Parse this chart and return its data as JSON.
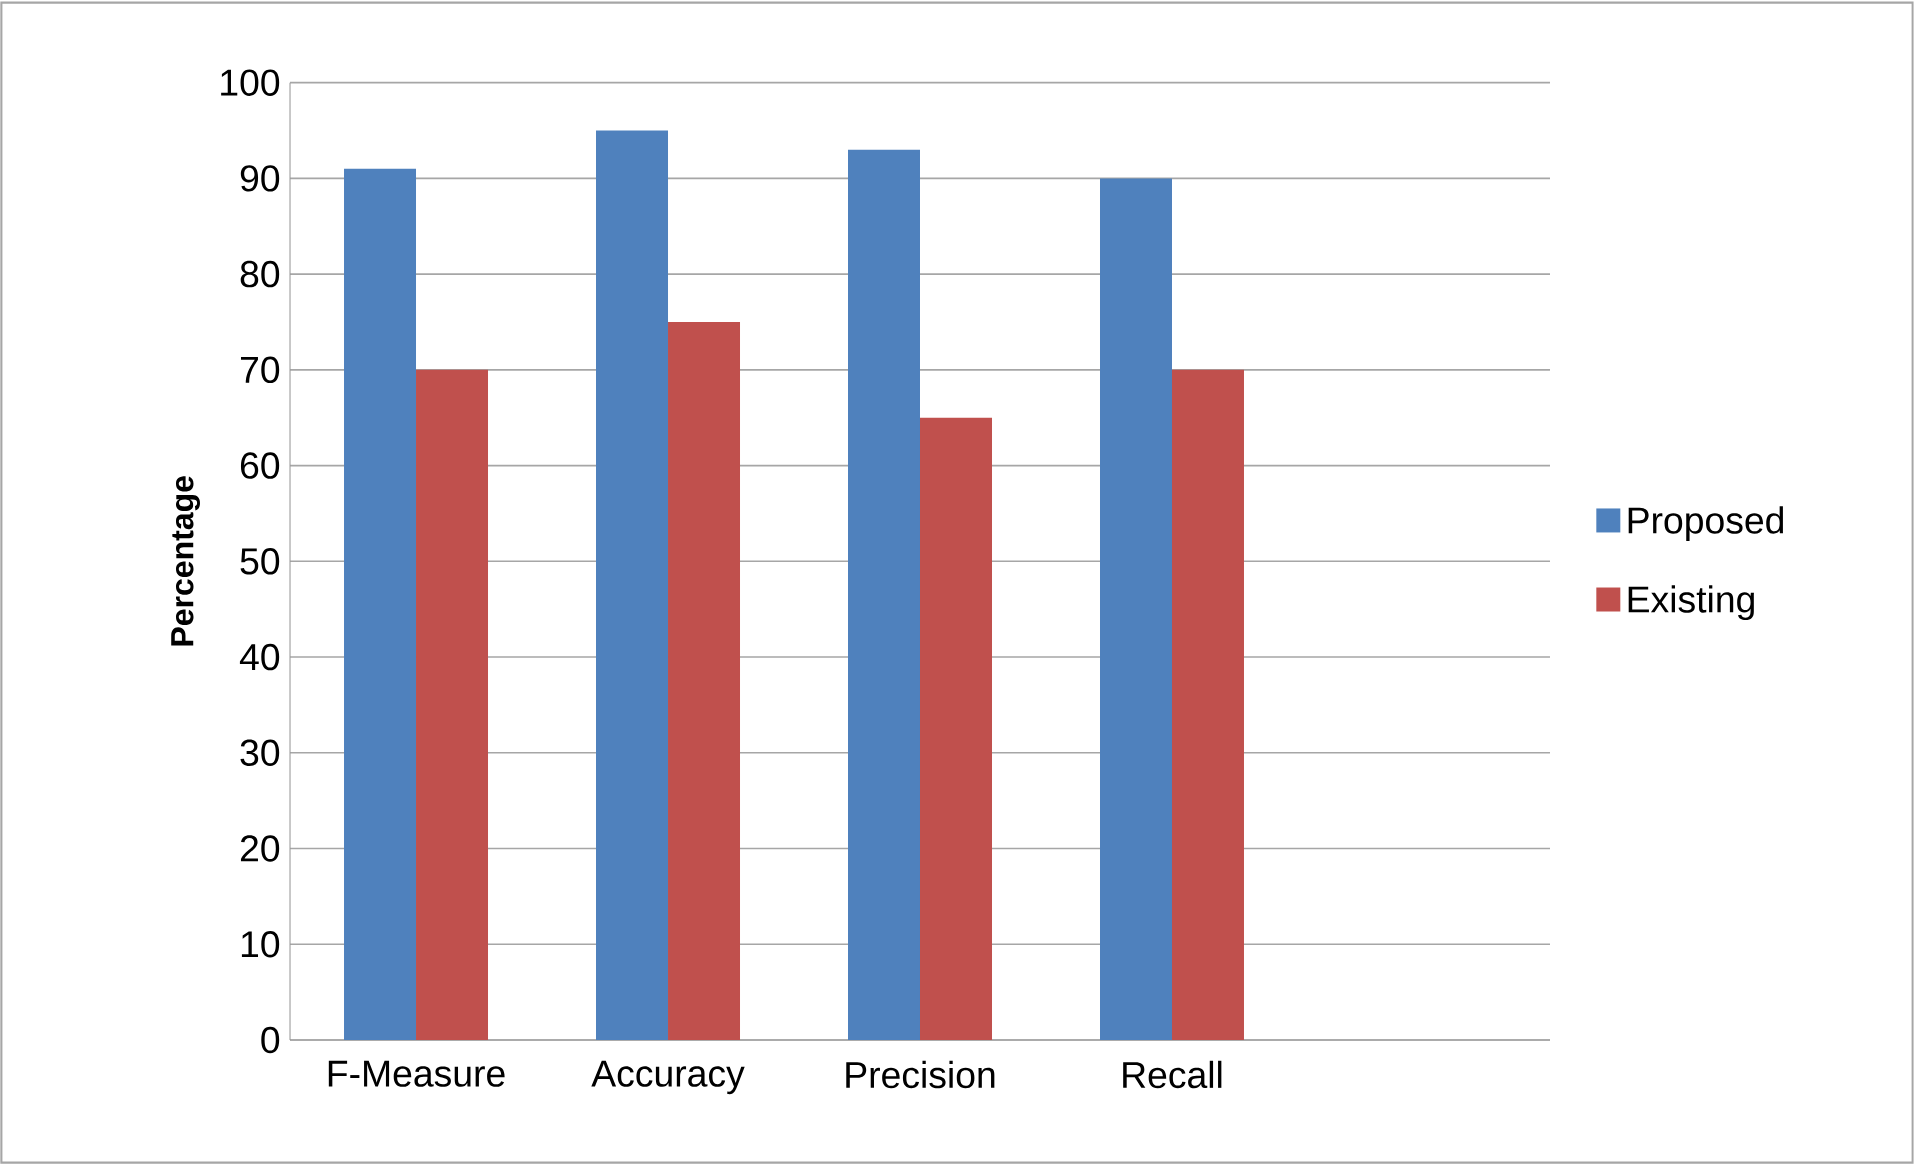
{
  "chart_data": {
    "type": "bar",
    "ylabel": "Percentage",
    "categories": [
      "F-Measure",
      "Accuracy",
      "Precision",
      "Recall",
      null
    ],
    "series": [
      {
        "name": "Proposed",
        "color": "#4f81bd",
        "values": [
          91,
          95,
          93,
          90,
          null
        ]
      },
      {
        "name": "Existing",
        "color": "#c0504d",
        "values": [
          70,
          75,
          65,
          70,
          null
        ]
      }
    ],
    "ylim": [
      0,
      100
    ],
    "yticks": [
      0,
      10,
      20,
      30,
      40,
      50,
      60,
      70,
      80,
      90,
      100
    ],
    "grid": "y",
    "legend": "right"
  }
}
